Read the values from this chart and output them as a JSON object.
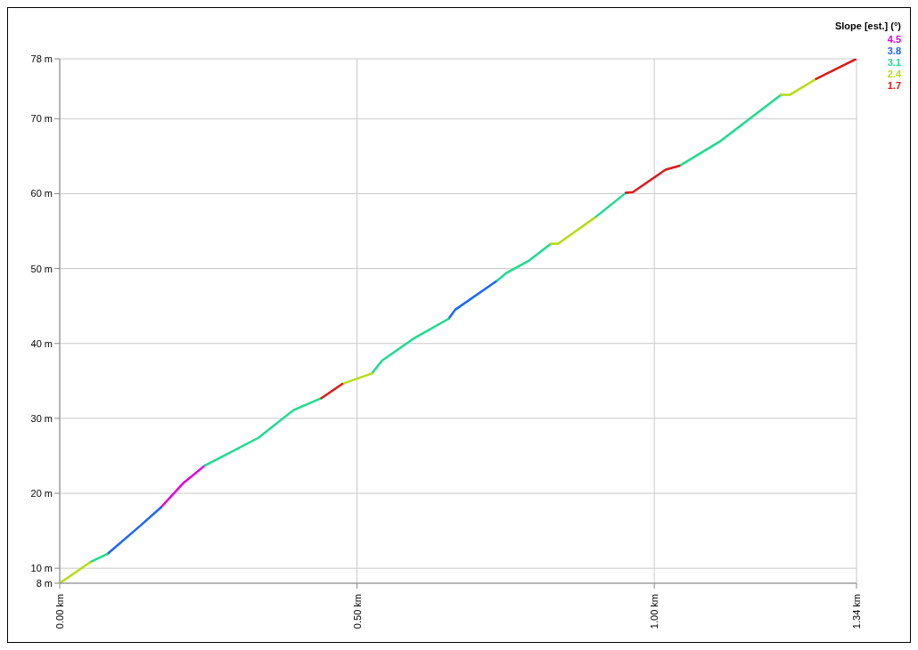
{
  "chart_data": {
    "type": "line",
    "legend_title": "Slope [est.] (°)",
    "legend": "top right",
    "x": [
      0,
      0.051,
      0.08,
      0.133,
      0.17,
      0.207,
      0.244,
      0.334,
      0.393,
      0.44,
      0.475,
      0.525,
      0.542,
      0.594,
      0.654,
      0.665,
      0.736,
      0.751,
      0.788,
      0.826,
      0.838,
      0.9,
      0.952,
      0.964,
      1.019,
      1.042,
      1.109,
      1.213,
      1.228,
      1.272,
      1.34
    ],
    "series": [
      {
        "name": "4.5",
        "color": "#e000e0",
        "values": [
          null,
          null,
          null,
          null,
          18.1,
          21.3,
          23.7,
          null,
          null,
          null,
          null,
          null,
          null,
          null,
          null,
          null,
          null,
          null,
          null,
          null,
          null,
          null,
          null,
          null,
          null,
          null,
          null,
          null,
          null,
          null,
          null
        ]
      },
      {
        "name": "3.8",
        "color": "#1a66ff",
        "values": [
          null,
          null,
          11.9,
          15.5,
          18.1,
          null,
          null,
          null,
          null,
          null,
          null,
          null,
          null,
          null,
          43.3,
          44.5,
          48.4,
          null,
          null,
          null,
          null,
          null,
          null,
          null,
          null,
          null,
          null,
          null,
          null,
          null,
          null
        ]
      },
      {
        "name": "3.1",
        "color": "#1ddc8c",
        "values": [
          null,
          10.8,
          11.9,
          null,
          null,
          null,
          23.7,
          27.4,
          31.1,
          32.7,
          null,
          36,
          37.7,
          40.6,
          43.3,
          null,
          48.4,
          49.4,
          51,
          53.3,
          null,
          56.8,
          60.1,
          null,
          null,
          63.7,
          66.9,
          73.2,
          null,
          null,
          null
        ]
      },
      {
        "name": "2.4",
        "color": "#b4dc14",
        "values": [
          8,
          10.8,
          null,
          null,
          null,
          null,
          null,
          null,
          null,
          null,
          34.6,
          36,
          null,
          null,
          null,
          null,
          null,
          null,
          null,
          53.3,
          53.3,
          56.8,
          null,
          null,
          null,
          null,
          null,
          73.2,
          73.2,
          75.3,
          null
        ]
      },
      {
        "name": "1.7",
        "color": "#e01818",
        "values": [
          null,
          null,
          null,
          null,
          null,
          null,
          null,
          null,
          null,
          32.7,
          34.6,
          null,
          null,
          null,
          null,
          null,
          null,
          null,
          null,
          null,
          null,
          null,
          60.1,
          60.2,
          63.2,
          63.7,
          null,
          null,
          null,
          75.3,
          78
        ]
      }
    ],
    "xlim": [
      0,
      1.34
    ],
    "xticks": [
      {
        "value": 0,
        "label": "0.00 km"
      },
      {
        "value": 0.5,
        "label": "0.50 km"
      },
      {
        "value": 1,
        "label": "1.00 km"
      },
      {
        "value": 1.34,
        "label": "1.34 km"
      }
    ],
    "ylim": [
      8,
      78
    ],
    "yticks": [
      {
        "value": 8,
        "label": "8 m"
      },
      {
        "value": 10,
        "label": "10 m"
      },
      {
        "value": 20,
        "label": "20 m"
      },
      {
        "value": 30,
        "label": "30 m"
      },
      {
        "value": 40,
        "label": "40 m"
      },
      {
        "value": 50,
        "label": "50 m"
      },
      {
        "value": 60,
        "label": "60 m"
      },
      {
        "value": 70,
        "label": "70 m"
      },
      {
        "value": 78,
        "label": "78 m"
      }
    ],
    "grid": true
  }
}
